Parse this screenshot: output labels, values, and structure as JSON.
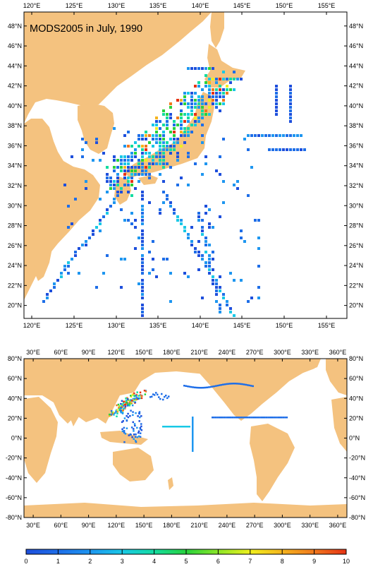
{
  "top_map": {
    "title": "MODS2005 in July, 1990",
    "x_ticks": [
      "120°E",
      "125°E",
      "130°E",
      "135°E",
      "140°E",
      "145°E",
      "150°E",
      "155°E"
    ],
    "y_ticks": [
      "20°N",
      "22°N",
      "24°N",
      "26°N",
      "28°N",
      "30°N",
      "32°N",
      "34°N",
      "36°N",
      "38°N",
      "40°N",
      "42°N",
      "44°N",
      "46°N",
      "48°N"
    ],
    "lon_range": [
      119,
      157.5
    ],
    "lat_range": [
      18.7,
      49.4
    ]
  },
  "bottom_map": {
    "x_ticks": [
      "30°E",
      "60°E",
      "90°E",
      "120°E",
      "150°E",
      "180°E",
      "210°E",
      "240°E",
      "270°E",
      "300°E",
      "330°E",
      "360°E"
    ],
    "y_ticks": [
      "80°N",
      "60°N",
      "40°N",
      "20°N",
      "0°N",
      "-20°N",
      "-40°N",
      "-60°N",
      "-80°N"
    ],
    "lon_range": [
      20,
      370
    ],
    "lat_range": [
      -80,
      80
    ]
  },
  "colorbar": {
    "labels": [
      "0",
      "1",
      "2",
      "3",
      "4",
      "5",
      "6",
      "7",
      "8",
      "9",
      "10"
    ],
    "colors": [
      "#1e4fdc",
      "#1e6ee8",
      "#1e96f0",
      "#19c8e6",
      "#14dca0",
      "#28d23c",
      "#8ce628",
      "#f0f01e",
      "#f5b41e",
      "#f0781e",
      "#e63214"
    ]
  },
  "colors": {
    "land": "#f4c27f",
    "ocean": "#ffffff"
  }
}
